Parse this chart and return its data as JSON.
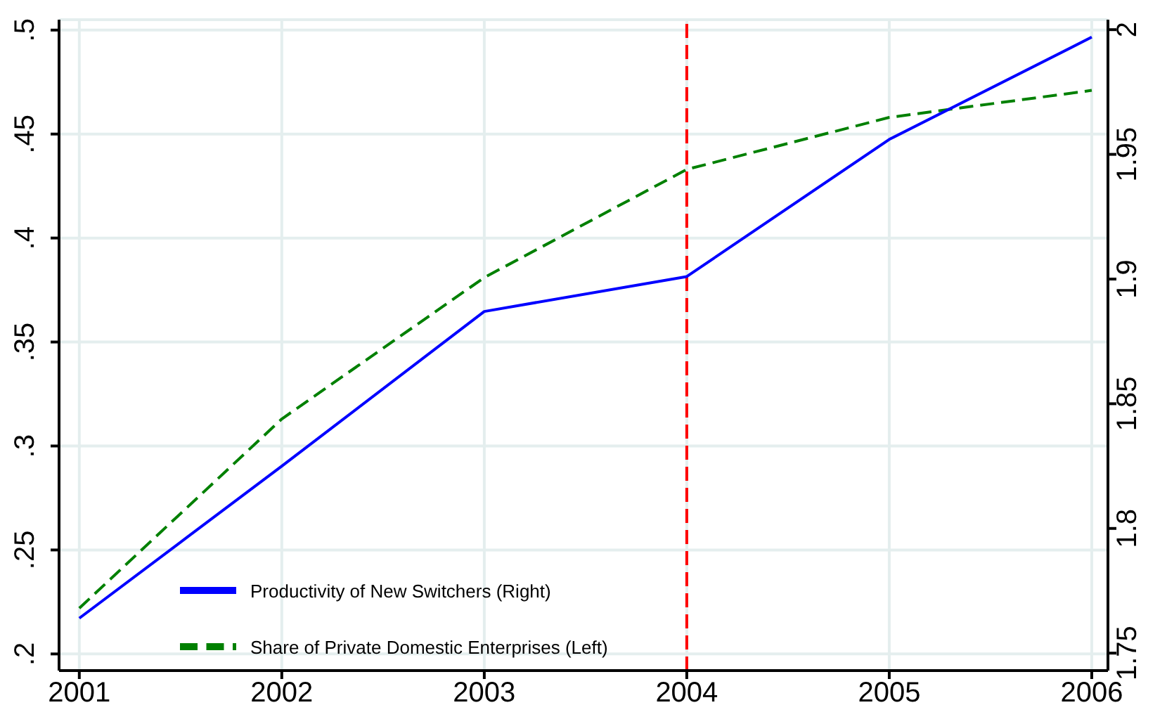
{
  "chart_data": {
    "type": "line",
    "x": [
      2001,
      2002,
      2003,
      2004,
      2005,
      2006
    ],
    "series": [
      {
        "name": "Share of Private Domestic Enterprises (Left)",
        "color": "#008000",
        "line_style": "dashed",
        "values": [
          0.222,
          0.313,
          0.381,
          0.433,
          0.458,
          0.471
        ]
      },
      {
        "name": "Productivity of New Switchers (Right)",
        "color": "#0000ff",
        "line_style": "solid",
        "axis": "y2",
        "values": [
          1.764,
          1.825,
          1.887,
          1.901,
          1.956,
          1.997
        ]
      }
    ],
    "xlim": [
      2000.9,
      2006.08
    ],
    "xticks": [
      2001,
      2002,
      2003,
      2004,
      2005,
      2006
    ],
    "ylim": [
      0.192,
      0.505
    ],
    "yticks": [
      {
        "value": 0.2,
        "label": ".2"
      },
      {
        "value": 0.25,
        "label": ".25"
      },
      {
        "value": 0.3,
        "label": ".3"
      },
      {
        "value": 0.35,
        "label": ".35"
      },
      {
        "value": 0.4,
        "label": ".4"
      },
      {
        "value": 0.45,
        "label": ".45"
      },
      {
        "value": 0.5,
        "label": ".5"
      }
    ],
    "y2lim": [
      1.743,
      2.004
    ],
    "y2ticks": [
      1.75,
      1.8,
      1.85,
      1.9,
      1.95,
      2
    ],
    "ref_lines": [
      {
        "axis": "x",
        "value": 2004,
        "color": "#ff0000",
        "line_style": "dashed"
      }
    ],
    "grid": true,
    "legend": "bottom left",
    "marker": "none"
  }
}
